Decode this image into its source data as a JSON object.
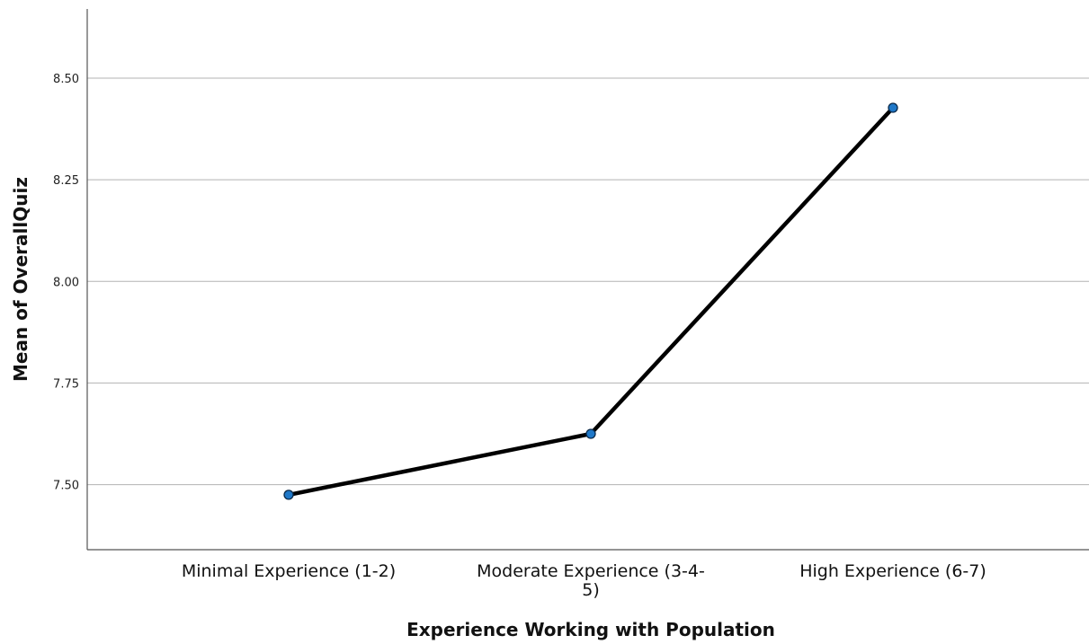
{
  "chart_data": {
    "type": "line",
    "title": "",
    "xlabel": "Experience Working with Population",
    "ylabel": "Mean of OverallQuiz",
    "categories": [
      [
        "Minimal Experience (1-2)"
      ],
      [
        "Moderate Experience (3-4-",
        "5)"
      ],
      [
        "High Experience (6-7)"
      ]
    ],
    "series": [
      {
        "values": [
          7.475,
          7.625,
          8.427
        ]
      }
    ],
    "ylim": [
      7.34,
      8.67
    ],
    "yticks": [
      7.5,
      7.75,
      8.0,
      8.25,
      8.5
    ],
    "ytick_labels": [
      "7.50",
      "7.75",
      "8.00",
      "8.25",
      "8.50"
    ],
    "grid": "horizontal",
    "legend": "none",
    "colors": {
      "line": "#000000",
      "marker_fill": "#1f78c8",
      "marker_stroke": "#0b2a4a",
      "grid": "#b3b3b3",
      "axis": "#555555"
    }
  }
}
